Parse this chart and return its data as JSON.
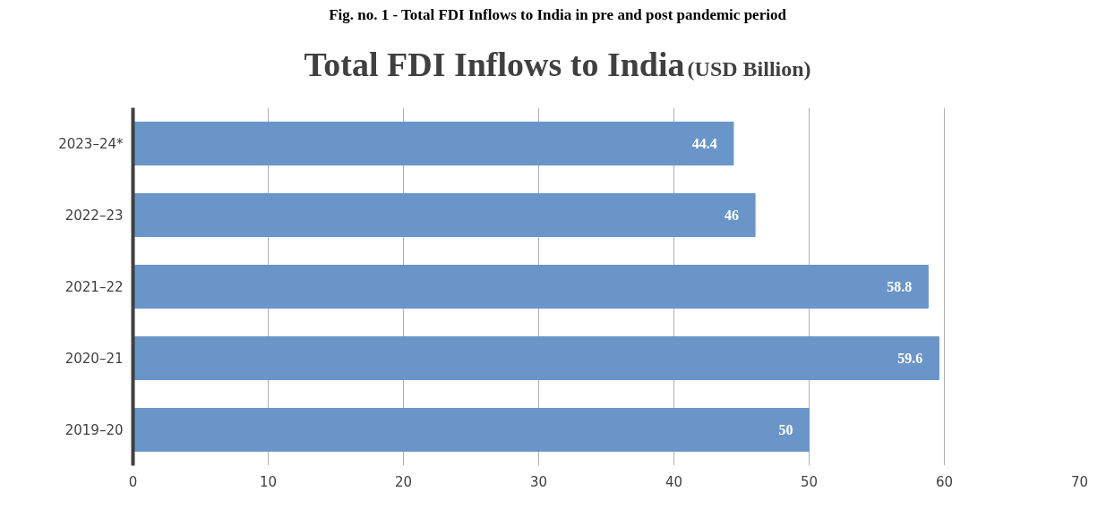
{
  "chart_data": {
    "type": "bar",
    "orientation": "horizontal",
    "title": "Total FDI Inflows to India",
    "subtitle": "(USD Billion)",
    "annotations": [
      "Fig. no. 1 - Total FDI Inflows to India in pre and post pandemic period"
    ],
    "categories": [
      "2023–24*",
      "2022–23",
      "2021–22",
      "2020–21",
      "2019–20"
    ],
    "values": [
      44.4,
      46,
      58.8,
      59.6,
      50
    ],
    "color": "#6a95c8",
    "xlim": [
      0,
      70
    ],
    "xticks": [
      0,
      10,
      20,
      30,
      40,
      50,
      60,
      70
    ],
    "grid": "x",
    "data_labels": true
  }
}
